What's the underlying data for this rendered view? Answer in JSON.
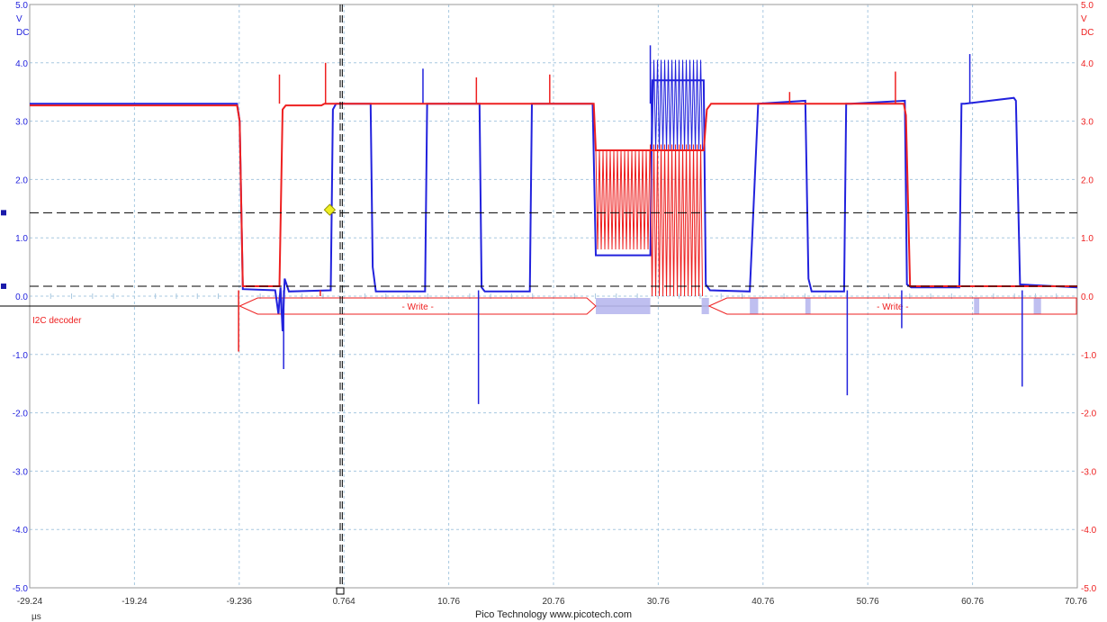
{
  "footer": {
    "brand": "Pico Technology  www.picotech.com"
  },
  "chart_data": {
    "type": "line",
    "title": "",
    "xlabel": "µs",
    "ylabel_left": {
      "unit": "V",
      "coupling": "DC"
    },
    "y_right_max_label": "5.0",
    "xlim": [
      -29.24,
      70.76
    ],
    "ylim": [
      -5.0,
      5.0
    ],
    "x_ticks": [
      "-29.24",
      "-19.24",
      "-9.236",
      "0.764",
      "10.76",
      "20.76",
      "30.76",
      "40.76",
      "50.76",
      "60.76",
      "70.76"
    ],
    "y_ticks_left": [
      "5.0",
      "4.0",
      "3.0",
      "2.0",
      "1.0",
      "0.0",
      "-1.0",
      "-2.0",
      "-3.0",
      "-4.0",
      "-5.0"
    ],
    "y_ticks_right": [
      "4.0",
      "3.0",
      "2.0",
      "1.0",
      "0.0",
      "-1.0",
      "-2.0",
      "-3.0",
      "-4.0",
      "-5.0"
    ],
    "grid": true,
    "colors": {
      "channel_a": "#2222dd",
      "channel_b": "#ee2020",
      "grid": "#a8c8e0",
      "decoder": "#ee2020"
    },
    "decoder": {
      "label": "I2C decoder",
      "packets": [
        {
          "label": "- Write -",
          "x_start": -9.2,
          "x_end": 24.8
        },
        {
          "label": "- Write -",
          "x_start": 35.6,
          "x_end": 70.7
        }
      ],
      "data_blocks": [
        {
          "x_start": -5.5,
          "x_end": -4.9
        },
        {
          "x_start": 24.8,
          "x_end": 30.0
        },
        {
          "x_start": 34.9,
          "x_end": 35.6
        },
        {
          "x_start": 39.5,
          "x_end": 40.3
        },
        {
          "x_start": 44.8,
          "x_end": 45.3
        },
        {
          "x_start": 60.9,
          "x_end": 61.4
        },
        {
          "x_start": 66.6,
          "x_end": 67.3
        }
      ]
    },
    "cursors": {
      "time": [
        0.4,
        0.6
      ],
      "voltage": [
        1.43,
        0.17
      ]
    },
    "trigger_marker": {
      "x": -0.6,
      "y": 1.48
    },
    "series": [
      {
        "color": "#2222dd",
        "x": [
          -29.24,
          -9.45,
          -9.2,
          -8.9,
          -5.8,
          -5.5,
          -5.3,
          -5.1,
          -4.9,
          -4.5,
          -0.5,
          -0.3,
          0.0,
          3.3,
          3.5,
          3.8,
          8.5,
          8.7,
          9.1,
          13.7,
          13.9,
          14.2,
          18.5,
          18.7,
          19.1,
          24.5,
          24.8,
          30.0,
          30.2,
          35.1,
          35.3,
          35.7,
          39.5,
          40.3,
          44.8,
          45.1,
          45.4,
          48.5,
          48.7,
          49.1,
          54.3,
          54.5,
          54.9,
          59.5,
          59.7,
          60.0,
          64.7,
          64.9,
          65.3,
          70.76
        ],
        "y": [
          3.3,
          3.3,
          3.0,
          0.12,
          0.1,
          -0.3,
          0.15,
          -0.6,
          0.3,
          0.08,
          0.1,
          3.2,
          3.3,
          3.3,
          0.5,
          0.08,
          0.08,
          3.3,
          3.3,
          3.3,
          0.15,
          0.08,
          0.08,
          3.3,
          3.3,
          3.3,
          0.7,
          0.7,
          3.7,
          3.7,
          0.2,
          0.1,
          0.08,
          3.3,
          3.35,
          0.3,
          0.08,
          0.08,
          3.3,
          3.3,
          3.35,
          0.2,
          0.15,
          0.15,
          3.3,
          3.3,
          3.4,
          3.35,
          0.2,
          0.15
        ],
        "spikes": [
          [
            -5.0,
            -1.25
          ],
          [
            8.3,
            3.9
          ],
          [
            13.6,
            -1.85
          ],
          [
            30.0,
            4.3
          ],
          [
            43.5,
            3.3
          ],
          [
            48.8,
            -1.7
          ],
          [
            54.0,
            -0.55
          ],
          [
            60.5,
            4.15
          ],
          [
            65.5,
            -1.55
          ]
        ],
        "burst": {
          "x_start": 30.0,
          "x_end": 35.1,
          "y_min": 2.5,
          "y_max": 4.05
        }
      },
      {
        "color": "#ee2020",
        "x": [
          -29.24,
          -9.45,
          -9.2,
          -8.9,
          -5.4,
          -5.1,
          -4.8,
          -1.4,
          -1.1,
          4.0,
          4.3,
          24.6,
          24.8,
          30.0,
          35.1,
          35.4,
          35.8,
          54.2,
          54.4,
          54.8,
          70.76
        ],
        "y": [
          3.27,
          3.27,
          3.0,
          0.17,
          0.17,
          3.2,
          3.27,
          3.27,
          3.3,
          3.3,
          3.3,
          3.3,
          2.5,
          2.5,
          2.5,
          3.2,
          3.3,
          3.3,
          3.1,
          0.17,
          0.17
        ],
        "spikes": [
          [
            -9.3,
            -0.95
          ],
          [
            -5.4,
            3.8
          ],
          [
            -1.0,
            4.0
          ],
          [
            -1.5,
            0.0
          ],
          [
            13.4,
            3.75
          ],
          [
            20.4,
            3.8
          ],
          [
            43.3,
            3.5
          ],
          [
            53.4,
            3.85
          ]
        ],
        "burst": {
          "x_start": 24.8,
          "x_end": 30.0,
          "y_min": 0.8,
          "y_max": 2.5
        },
        "burst2": {
          "x_start": 30.0,
          "x_end": 35.1,
          "y_min": 0.0,
          "y_max": 2.6
        }
      }
    ]
  }
}
